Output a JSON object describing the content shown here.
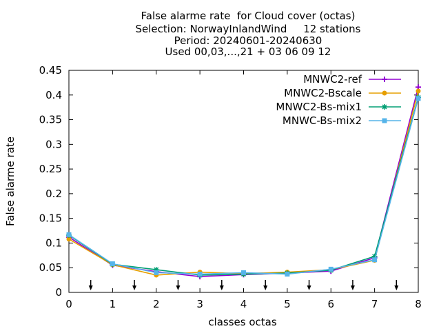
{
  "chart_data": {
    "type": "line",
    "title_lines": [
      "False alarme rate  for Cloud cover (octas)",
      "Selection: NorwayInlandWind     12 stations",
      "Period: 20240601-20240630",
      "Used 00,03,...,21 + 03 06 09 12"
    ],
    "xlabel": "classes octas",
    "ylabel": "False alarme rate",
    "xlim": [
      0,
      8
    ],
    "ylim": [
      0,
      0.45
    ],
    "xticks": [
      "0",
      "1",
      "2",
      "3",
      "4",
      "5",
      "6",
      "7",
      "8"
    ],
    "yticks": [
      "0",
      "0.05",
      "0.1",
      "0.15",
      "0.2",
      "0.25",
      "0.3",
      "0.35",
      "0.4",
      "0.45"
    ],
    "grid": false,
    "legend_position": "top-right",
    "x": [
      0,
      1,
      2,
      3,
      4,
      5,
      6,
      7,
      8
    ],
    "series": [
      {
        "name": "MNWC2-ref",
        "color": "#9400d3",
        "marker": "plus",
        "values": [
          0.112,
          0.055,
          0.042,
          0.032,
          0.036,
          0.039,
          0.043,
          0.07,
          0.416
        ]
      },
      {
        "name": "MNWC2-Bscale",
        "color": "#e69f00",
        "marker": "circle",
        "values": [
          0.108,
          0.056,
          0.035,
          0.041,
          0.038,
          0.041,
          0.046,
          0.065,
          0.408
        ]
      },
      {
        "name": "MNWC2-Bs-mix1",
        "color": "#009e73",
        "marker": "star",
        "values": [
          0.116,
          0.057,
          0.046,
          0.035,
          0.037,
          0.039,
          0.045,
          0.073,
          0.395
        ]
      },
      {
        "name": "MNWC-Bs-mix2",
        "color": "#56b4e9",
        "marker": "square",
        "values": [
          0.117,
          0.058,
          0.04,
          0.037,
          0.04,
          0.037,
          0.047,
          0.066,
          0.393
        ]
      }
    ],
    "arrows_at_x": [
      0.5,
      1.5,
      2.5,
      3.5,
      4.5,
      5.5,
      6.5,
      7.5
    ]
  }
}
